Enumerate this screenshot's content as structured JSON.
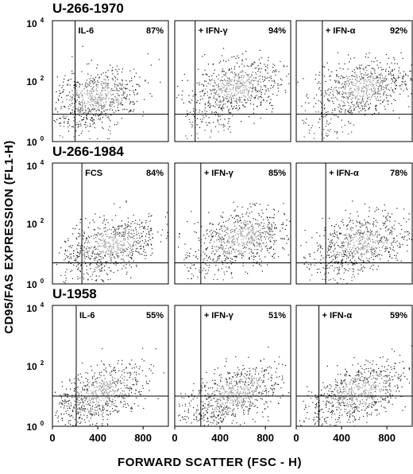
{
  "chart_data": {
    "type": "scatter",
    "ylabel": "CD95/FAS EXPRESSION (FL1-H)",
    "xlabel": "FORWARD SCATTER (FSC - H)",
    "x_ticks": [
      "0",
      "400",
      "800"
    ],
    "x_tick_values": [
      0,
      400,
      800
    ],
    "xlim": [
      0,
      1023
    ],
    "y_scale": "log",
    "ylim": [
      1,
      10000
    ],
    "y_ticks": [
      {
        "base": "10",
        "exp": "0",
        "value": 1
      },
      {
        "base": "10",
        "exp": "2",
        "value": 100
      },
      {
        "base": "10",
        "exp": "4",
        "value": 10000
      }
    ],
    "rows": [
      {
        "title": "U-266-1970",
        "panels": [
          {
            "label": "IL-6",
            "percent": "87%",
            "gate_x": 200,
            "gate_y": 8,
            "center_x": 380,
            "center_y": 30
          },
          {
            "label": "+ IFN-γ",
            "percent": "94%",
            "gate_x": 180,
            "gate_y": 8,
            "center_x": 520,
            "center_y": 60
          },
          {
            "label": "+ IFN-α",
            "percent": "92%",
            "gate_x": 230,
            "gate_y": 8,
            "center_x": 580,
            "center_y": 60
          }
        ]
      },
      {
        "title": "U-266-1984",
        "panels": [
          {
            "label": "FCS",
            "percent": "84%",
            "gate_x": 260,
            "gate_y": 5,
            "center_x": 520,
            "center_y": 20
          },
          {
            "label": "+ IFN-γ",
            "percent": "85%",
            "gate_x": 230,
            "gate_y": 5,
            "center_x": 600,
            "center_y": 35
          },
          {
            "label": "+ IFN-α",
            "percent": "78%",
            "gate_x": 260,
            "gate_y": 5,
            "center_x": 560,
            "center_y": 22
          }
        ]
      },
      {
        "title": "U-1958",
        "panels": [
          {
            "label": "IL-6",
            "percent": "55%",
            "gate_x": 210,
            "gate_y": 10,
            "center_x": 420,
            "center_y": 12
          },
          {
            "label": "+ IFN-γ",
            "percent": "51%",
            "gate_x": 230,
            "gate_y": 10,
            "center_x": 520,
            "center_y": 11
          },
          {
            "label": "+ IFN-α",
            "percent": "59%",
            "gate_x": 200,
            "gate_y": 10,
            "center_x": 540,
            "center_y": 13
          }
        ]
      }
    ]
  }
}
